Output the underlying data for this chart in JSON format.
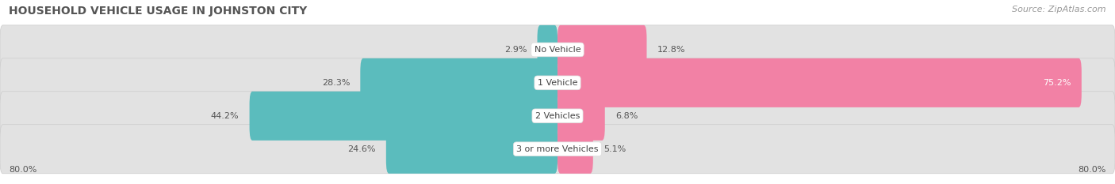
{
  "title": "HOUSEHOLD VEHICLE USAGE IN JOHNSTON CITY",
  "source": "Source: ZipAtlas.com",
  "categories": [
    "No Vehicle",
    "1 Vehicle",
    "2 Vehicles",
    "3 or more Vehicles"
  ],
  "owner_values": [
    2.9,
    28.3,
    44.2,
    24.6
  ],
  "renter_values": [
    12.8,
    75.2,
    6.8,
    5.1
  ],
  "owner_color": "#5bbcbd",
  "renter_color": "#f281a5",
  "bar_bg_color": "#e2e2e2",
  "bar_bg_edge_color": "#d0d0d0",
  "xlim": 80.0,
  "title_fontsize": 10,
  "source_fontsize": 8,
  "label_fontsize": 8,
  "category_fontsize": 8,
  "axis_label_fontsize": 8,
  "title_color": "#555555",
  "label_color": "#555555",
  "source_color": "#999999"
}
